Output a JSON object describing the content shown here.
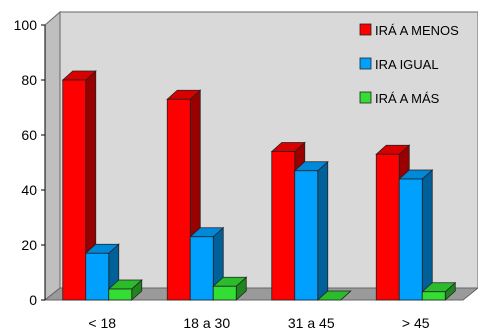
{
  "chart_data": {
    "type": "bar",
    "title": "",
    "xlabel": "",
    "ylabel": "",
    "categories": [
      "< 18",
      "18 a 30",
      "31 a 45",
      "> 45"
    ],
    "ylim": [
      0,
      100
    ],
    "yticks": [
      "0",
      "20",
      "40",
      "60",
      "80",
      "100"
    ],
    "grid": false,
    "legend_position": "top-right",
    "series": [
      {
        "name": "IRÁ A MENOS",
        "color": "#ff0000",
        "values": [
          80,
          73,
          54,
          53
        ]
      },
      {
        "name": "IRA IGUAL",
        "color": "#00a0ff",
        "values": [
          17,
          23,
          47,
          44
        ]
      },
      {
        "name": "IRÁ A MÁS",
        "color": "#33dd33",
        "values": [
          4,
          5,
          0,
          3
        ]
      }
    ]
  }
}
